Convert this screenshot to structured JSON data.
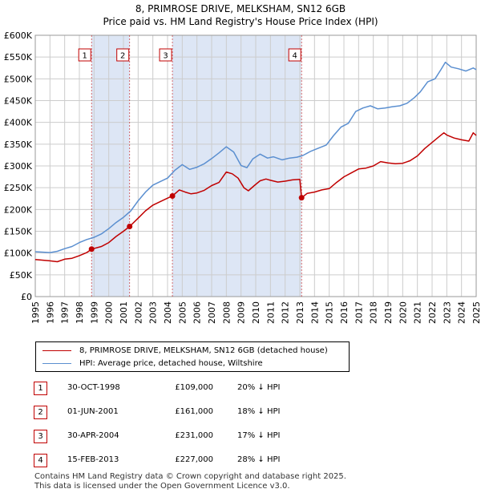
{
  "title_line1": "8, PRIMROSE DRIVE, MELKSHAM, SN12 6GB",
  "title_line2": "Price paid vs. HM Land Registry's House Price Index (HPI)",
  "colors": {
    "property": "#c00000",
    "hpi": "#5b8fd0",
    "shade": "#dde6f5",
    "grid": "#cccccc"
  },
  "chart_data": {
    "type": "line",
    "xlim": [
      1995,
      2025
    ],
    "ylim": [
      0,
      600000
    ],
    "y_ticks": [
      0,
      50000,
      100000,
      150000,
      200000,
      250000,
      300000,
      350000,
      400000,
      450000,
      500000,
      550000,
      600000
    ],
    "y_tick_labels": [
      "£0",
      "£50K",
      "£100K",
      "£150K",
      "£200K",
      "£250K",
      "£300K",
      "£350K",
      "£400K",
      "£450K",
      "£500K",
      "£550K",
      "£600K"
    ],
    "x_ticks": [
      1995,
      1996,
      1997,
      1998,
      1999,
      2000,
      2001,
      2002,
      2003,
      2004,
      2005,
      2006,
      2007,
      2008,
      2009,
      2010,
      2011,
      2012,
      2013,
      2014,
      2015,
      2016,
      2017,
      2018,
      2019,
      2020,
      2021,
      2022,
      2023,
      2024,
      2025
    ],
    "shaded_ranges": [
      [
        1998.83,
        2001.42
      ],
      [
        2004.33,
        2013.12
      ]
    ],
    "series": [
      {
        "name": "8, PRIMROSE DRIVE, MELKSHAM, SN12 6GB (detached house)",
        "color": "#c00000",
        "points": [
          [
            1995.0,
            85000
          ],
          [
            1996.0,
            82000
          ],
          [
            1996.5,
            80000
          ],
          [
            1997.0,
            86000
          ],
          [
            1997.5,
            88000
          ],
          [
            1998.0,
            94000
          ],
          [
            1998.5,
            101000
          ],
          [
            1998.83,
            109000
          ],
          [
            1999.5,
            115000
          ],
          [
            2000.0,
            124000
          ],
          [
            2000.5,
            138000
          ],
          [
            2001.0,
            150000
          ],
          [
            2001.42,
            161000
          ],
          [
            2002.0,
            180000
          ],
          [
            2002.5,
            197000
          ],
          [
            2003.0,
            210000
          ],
          [
            2003.5,
            218000
          ],
          [
            2004.0,
            226000
          ],
          [
            2004.33,
            231000
          ],
          [
            2004.8,
            245000
          ],
          [
            2005.2,
            240000
          ],
          [
            2005.6,
            236000
          ],
          [
            2006.0,
            238000
          ],
          [
            2006.5,
            244000
          ],
          [
            2007.0,
            255000
          ],
          [
            2007.5,
            262000
          ],
          [
            2008.0,
            286000
          ],
          [
            2008.4,
            282000
          ],
          [
            2008.8,
            272000
          ],
          [
            2009.2,
            250000
          ],
          [
            2009.5,
            243000
          ],
          [
            2009.9,
            255000
          ],
          [
            2010.3,
            266000
          ],
          [
            2010.7,
            270000
          ],
          [
            2011.0,
            267000
          ],
          [
            2011.5,
            263000
          ],
          [
            2012.0,
            265000
          ],
          [
            2012.5,
            268000
          ],
          [
            2013.0,
            269000
          ],
          [
            2013.12,
            227000
          ],
          [
            2013.5,
            237000
          ],
          [
            2014.0,
            240000
          ],
          [
            2014.5,
            245000
          ],
          [
            2015.0,
            248000
          ],
          [
            2015.5,
            262000
          ],
          [
            2016.0,
            275000
          ],
          [
            2016.5,
            284000
          ],
          [
            2017.0,
            293000
          ],
          [
            2017.5,
            295000
          ],
          [
            2018.0,
            300000
          ],
          [
            2018.5,
            310000
          ],
          [
            2019.0,
            307000
          ],
          [
            2019.5,
            305000
          ],
          [
            2020.0,
            306000
          ],
          [
            2020.5,
            312000
          ],
          [
            2021.0,
            323000
          ],
          [
            2021.5,
            340000
          ],
          [
            2022.0,
            354000
          ],
          [
            2022.5,
            368000
          ],
          [
            2022.8,
            376000
          ],
          [
            2023.0,
            371000
          ],
          [
            2023.5,
            364000
          ],
          [
            2024.0,
            360000
          ],
          [
            2024.5,
            357000
          ],
          [
            2024.8,
            376000
          ],
          [
            2025.0,
            370000
          ]
        ]
      },
      {
        "name": "HPI: Average price, detached house, Wiltshire",
        "color": "#5b8fd0",
        "points": [
          [
            1995.0,
            103000
          ],
          [
            1996.0,
            101000
          ],
          [
            1996.5,
            104000
          ],
          [
            1997.0,
            110000
          ],
          [
            1997.5,
            115000
          ],
          [
            1998.0,
            124000
          ],
          [
            1998.5,
            131000
          ],
          [
            1999.0,
            136000
          ],
          [
            1999.5,
            144000
          ],
          [
            2000.0,
            156000
          ],
          [
            2000.5,
            170000
          ],
          [
            2001.0,
            182000
          ],
          [
            2001.5,
            197000
          ],
          [
            2002.0,
            220000
          ],
          [
            2002.5,
            240000
          ],
          [
            2003.0,
            256000
          ],
          [
            2003.5,
            264000
          ],
          [
            2004.0,
            272000
          ],
          [
            2004.5,
            290000
          ],
          [
            2005.0,
            303000
          ],
          [
            2005.5,
            292000
          ],
          [
            2006.0,
            297000
          ],
          [
            2006.5,
            305000
          ],
          [
            2007.0,
            317000
          ],
          [
            2007.5,
            330000
          ],
          [
            2008.0,
            344000
          ],
          [
            2008.5,
            332000
          ],
          [
            2009.0,
            301000
          ],
          [
            2009.4,
            296000
          ],
          [
            2009.8,
            316000
          ],
          [
            2010.3,
            327000
          ],
          [
            2010.8,
            318000
          ],
          [
            2011.2,
            321000
          ],
          [
            2011.8,
            314000
          ],
          [
            2012.3,
            318000
          ],
          [
            2012.8,
            320000
          ],
          [
            2013.2,
            324000
          ],
          [
            2013.7,
            333000
          ],
          [
            2014.2,
            340000
          ],
          [
            2014.8,
            348000
          ],
          [
            2015.3,
            370000
          ],
          [
            2015.8,
            389000
          ],
          [
            2016.3,
            398000
          ],
          [
            2016.8,
            425000
          ],
          [
            2017.3,
            433000
          ],
          [
            2017.8,
            438000
          ],
          [
            2018.3,
            431000
          ],
          [
            2018.8,
            433000
          ],
          [
            2019.3,
            436000
          ],
          [
            2019.8,
            438000
          ],
          [
            2020.3,
            444000
          ],
          [
            2020.8,
            457000
          ],
          [
            2021.2,
            470000
          ],
          [
            2021.7,
            493000
          ],
          [
            2022.2,
            500000
          ],
          [
            2022.6,
            521000
          ],
          [
            2022.9,
            538000
          ],
          [
            2023.3,
            527000
          ],
          [
            2023.8,
            523000
          ],
          [
            2024.3,
            518000
          ],
          [
            2024.8,
            525000
          ],
          [
            2025.0,
            521000
          ]
        ]
      }
    ],
    "markers": [
      {
        "num": "1",
        "x": 1998.83,
        "y": 109000
      },
      {
        "num": "2",
        "x": 2001.42,
        "y": 161000
      },
      {
        "num": "3",
        "x": 2004.33,
        "y": 231000
      },
      {
        "num": "4",
        "x": 2013.12,
        "y": 227000
      }
    ]
  },
  "legend": {
    "property_label": "8, PRIMROSE DRIVE, MELKSHAM, SN12 6GB (detached house)",
    "hpi_label": "HPI: Average price, detached house, Wiltshire"
  },
  "sales": [
    {
      "num": "1",
      "date": "30-OCT-1998",
      "price": "£109,000",
      "hpi": "20% ↓ HPI"
    },
    {
      "num": "2",
      "date": "01-JUN-2001",
      "price": "£161,000",
      "hpi": "18% ↓ HPI"
    },
    {
      "num": "3",
      "date": "30-APR-2004",
      "price": "£231,000",
      "hpi": "17% ↓ HPI"
    },
    {
      "num": "4",
      "date": "15-FEB-2013",
      "price": "£227,000",
      "hpi": "28% ↓ HPI"
    }
  ],
  "footer_line1": "Contains HM Land Registry data © Crown copyright and database right 2025.",
  "footer_line2": "This data is licensed under the Open Government Licence v3.0."
}
